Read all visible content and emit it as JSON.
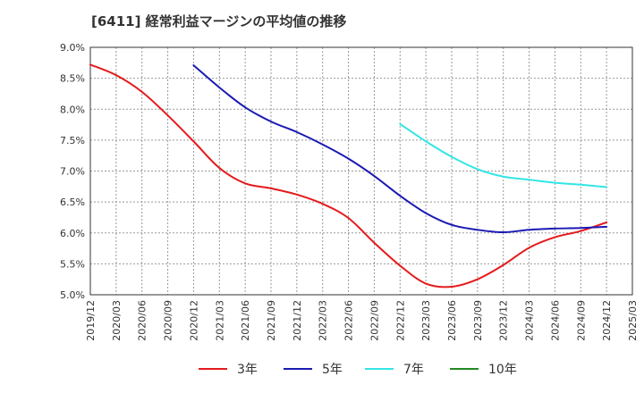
{
  "chart_data": {
    "type": "line",
    "title": "[6411]  経常利益マージンの平均値の推移",
    "xlabel": "",
    "ylabel": "",
    "x_ticks": [
      "2019/12",
      "2020/03",
      "2020/06",
      "2020/09",
      "2020/12",
      "2021/03",
      "2021/06",
      "2021/09",
      "2021/12",
      "2022/03",
      "2022/06",
      "2022/09",
      "2022/12",
      "2023/03",
      "2023/06",
      "2023/09",
      "2023/12",
      "2024/03",
      "2024/06",
      "2024/09",
      "2024/12",
      "2025/03"
    ],
    "y_ticks": [
      "5.0%",
      "5.5%",
      "6.0%",
      "6.5%",
      "7.0%",
      "7.5%",
      "8.0%",
      "8.5%",
      "9.0%"
    ],
    "ylim": [
      5.0,
      9.0
    ],
    "grid": true,
    "legend_position": "bottom",
    "series": [
      {
        "name": "3年",
        "color": "#e41a1c",
        "x": [
          "2019/12",
          "2020/03",
          "2020/06",
          "2020/09",
          "2020/12",
          "2021/03",
          "2021/06",
          "2021/09",
          "2021/12",
          "2022/03",
          "2022/06",
          "2022/09",
          "2022/12",
          "2023/03",
          "2023/06",
          "2023/09",
          "2023/12",
          "2024/03",
          "2024/06",
          "2024/09",
          "2024/12"
        ],
        "y": [
          8.72,
          8.55,
          8.28,
          7.9,
          7.48,
          7.05,
          6.8,
          6.72,
          6.62,
          6.47,
          6.24,
          5.84,
          5.47,
          5.18,
          5.13,
          5.25,
          5.48,
          5.76,
          5.93,
          6.03,
          6.17
        ]
      },
      {
        "name": "5年",
        "color": "#1a1ab4",
        "x": [
          "2020/12",
          "2021/03",
          "2021/06",
          "2021/09",
          "2021/12",
          "2022/03",
          "2022/06",
          "2022/09",
          "2022/12",
          "2023/03",
          "2023/06",
          "2023/09",
          "2023/12",
          "2024/03",
          "2024/06",
          "2024/09",
          "2024/12"
        ],
        "y": [
          8.71,
          8.35,
          8.03,
          7.8,
          7.63,
          7.43,
          7.2,
          6.92,
          6.6,
          6.32,
          6.13,
          6.05,
          6.01,
          6.05,
          6.07,
          6.08,
          6.1
        ]
      },
      {
        "name": "7年",
        "color": "#33e5e5",
        "x": [
          "2022/12",
          "2023/03",
          "2023/06",
          "2023/09",
          "2023/12",
          "2024/03",
          "2024/06",
          "2024/09",
          "2024/12"
        ],
        "y": [
          7.76,
          7.48,
          7.23,
          7.03,
          6.91,
          6.86,
          6.81,
          6.78,
          6.74
        ]
      },
      {
        "name": "10年",
        "color": "#228b22",
        "x": [],
        "y": []
      }
    ]
  }
}
